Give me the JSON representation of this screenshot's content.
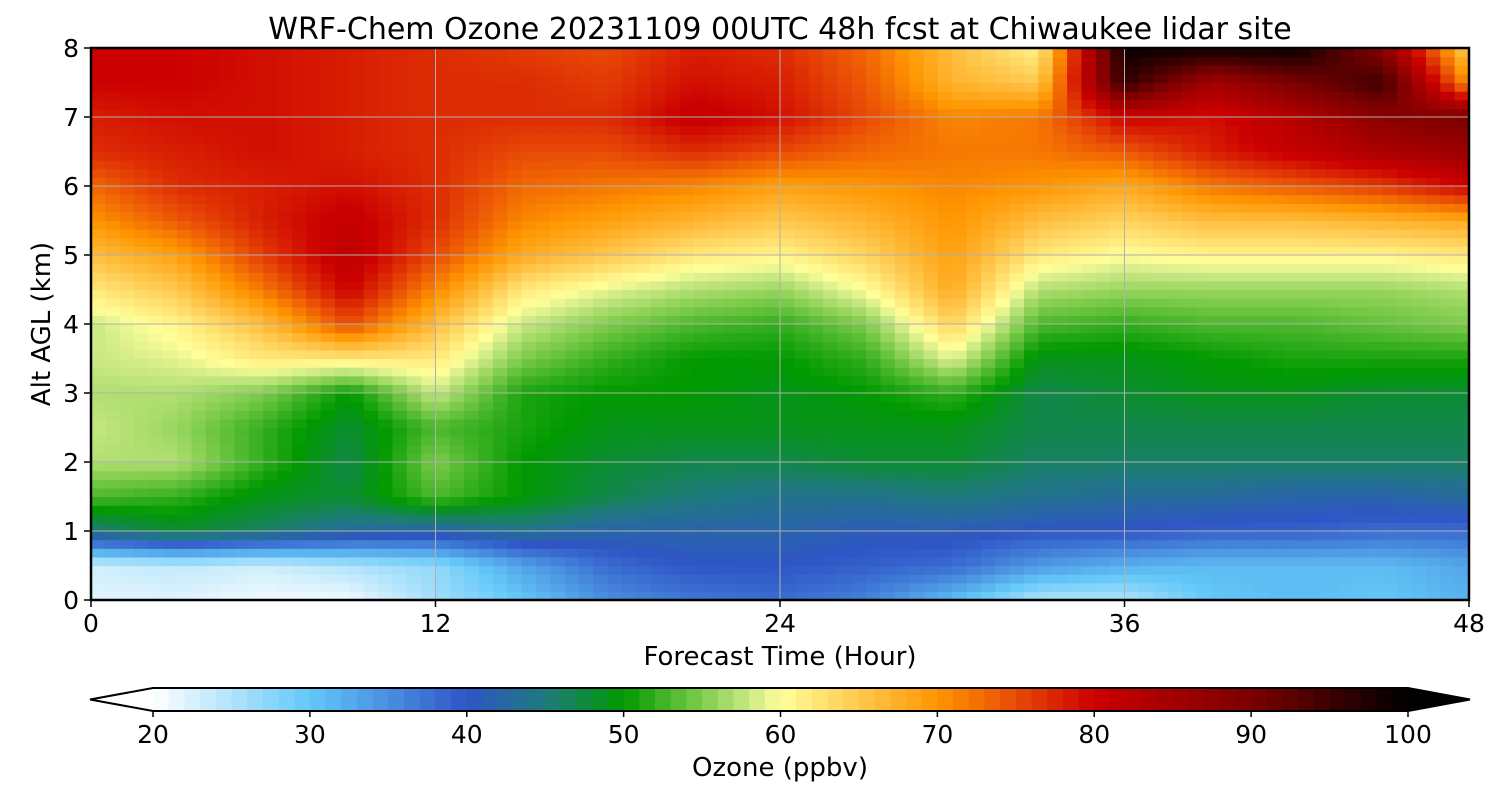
{
  "chart_data": {
    "type": "heatmap",
    "title": "WRF-Chem Ozone  20231109 00UTC 48h fcst at Chiwaukee lidar site",
    "xlabel": "Forecast Time (Hour)",
    "ylabel": "Alt AGL (km)",
    "xlim": [
      0,
      48
    ],
    "ylim": [
      0,
      8
    ],
    "xticks": [
      0,
      12,
      24,
      36,
      48
    ],
    "yticks": [
      0,
      1,
      2,
      3,
      4,
      5,
      6,
      7,
      8
    ],
    "grid": true,
    "x": [
      0,
      3,
      6,
      9,
      12,
      15,
      18,
      21,
      24,
      27,
      30,
      33,
      36,
      39,
      42,
      45,
      48
    ],
    "y": [
      0,
      0.5,
      1,
      1.5,
      2,
      2.5,
      3,
      3.5,
      4,
      4.5,
      5,
      5.5,
      6,
      6.5,
      7,
      7.5,
      8
    ],
    "z": [
      [
        22,
        22,
        21,
        21,
        26,
        30,
        35,
        37,
        38,
        36,
        31,
        25,
        25,
        30,
        31,
        30,
        32
      ],
      [
        23,
        24,
        23,
        25,
        27,
        33,
        38,
        40,
        40,
        39,
        38,
        34,
        32,
        31,
        31,
        31,
        33
      ],
      [
        45,
        48,
        46,
        43,
        42,
        44,
        42,
        42,
        42,
        41,
        41,
        40,
        40,
        39,
        39,
        38,
        38
      ],
      [
        53,
        52,
        49,
        48,
        53,
        50,
        47,
        45,
        44,
        44,
        45,
        44,
        43,
        43,
        42,
        42,
        43
      ],
      [
        57,
        57,
        52,
        47,
        55,
        50,
        48,
        47,
        47,
        48,
        48,
        46,
        46,
        46,
        46,
        46,
        46
      ],
      [
        58,
        56,
        52,
        48,
        53,
        51,
        49,
        49,
        49,
        49,
        49,
        47,
        47,
        47,
        47,
        47,
        47
      ],
      [
        57,
        57,
        55,
        50,
        58,
        51,
        50,
        50,
        49,
        50,
        52,
        47,
        48,
        49,
        49,
        48,
        48
      ],
      [
        58,
        59,
        62,
        62,
        62,
        55,
        52,
        50,
        50,
        52,
        59,
        49,
        49,
        50,
        51,
        51,
        51
      ],
      [
        58,
        61,
        66,
        75,
        66,
        58,
        55,
        53,
        52,
        55,
        64,
        53,
        52,
        53,
        53,
        54,
        55
      ],
      [
        62,
        65,
        72,
        80,
        71,
        62,
        59,
        57,
        56,
        60,
        68,
        57,
        56,
        56,
        56,
        56,
        57
      ],
      [
        66,
        69,
        76,
        82,
        75,
        68,
        65,
        62,
        61,
        64,
        69,
        62,
        60,
        61,
        61,
        61,
        62
      ],
      [
        70,
        74,
        78,
        81,
        77,
        71,
        69,
        67,
        65,
        67,
        70,
        66,
        64,
        66,
        66,
        67,
        68
      ],
      [
        73,
        77,
        78,
        79,
        77,
        73,
        72,
        71,
        69,
        70,
        71,
        70,
        68,
        72,
        74,
        76,
        80
      ],
      [
        77,
        78,
        79,
        78,
        77,
        75,
        75,
        77,
        75,
        73,
        72,
        72,
        74,
        78,
        81,
        84,
        86
      ],
      [
        78,
        79,
        79,
        78,
        77,
        77,
        77,
        81,
        79,
        75,
        71,
        72,
        80,
        79,
        83,
        88,
        90
      ],
      [
        80,
        80,
        79,
        78,
        77,
        77,
        76,
        79,
        78,
        74,
        67,
        65,
        96,
        85,
        90,
        95,
        70
      ],
      [
        80,
        80,
        79,
        78,
        77,
        76,
        75,
        78,
        77,
        73,
        66,
        61,
        99,
        99,
        99,
        88,
        64
      ]
    ],
    "colorbar": {
      "label": "Ozone  (ppbv)",
      "min": 20,
      "max": 100,
      "ticks": [
        20,
        30,
        40,
        50,
        60,
        70,
        80,
        90,
        100
      ],
      "extend": "both",
      "colors": [
        {
          "v": 20,
          "c": "#ffffff"
        },
        {
          "v": 30,
          "c": "#63c8f8"
        },
        {
          "v": 40,
          "c": "#2f55c6"
        },
        {
          "v": 45,
          "c": "#1f7a7e"
        },
        {
          "v": 50,
          "c": "#009900"
        },
        {
          "v": 55,
          "c": "#7fcc4c"
        },
        {
          "v": 58,
          "c": "#c9e884"
        },
        {
          "v": 60,
          "c": "#ffff99"
        },
        {
          "v": 65,
          "c": "#ffc84e"
        },
        {
          "v": 70,
          "c": "#ff9600"
        },
        {
          "v": 75,
          "c": "#e84a06"
        },
        {
          "v": 80,
          "c": "#cc0000"
        },
        {
          "v": 90,
          "c": "#7a0000"
        },
        {
          "v": 100,
          "c": "#000000"
        }
      ]
    }
  }
}
